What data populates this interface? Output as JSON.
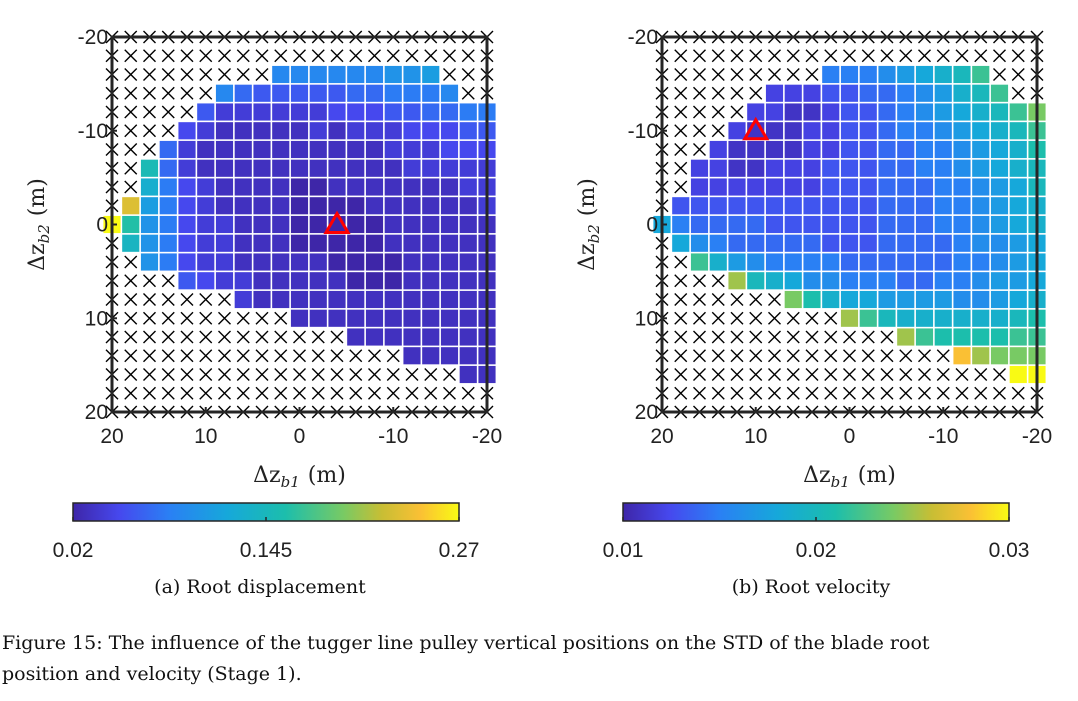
{
  "colormap": "parula",
  "marker_color": "#ff0000",
  "empty_cell_marker": "cross",
  "chart_data": [
    {
      "type": "heatmap",
      "caption": "(a) Root displacement",
      "xlabel": {
        "symbol": "Δz",
        "sub": "b1",
        "unit": "(m)"
      },
      "ylabel": {
        "symbol": "Δz",
        "sub": "b2",
        "unit": "(m)"
      },
      "x": [
        20,
        18,
        16,
        14,
        12,
        10,
        8,
        6,
        4,
        2,
        0,
        -2,
        -4,
        -6,
        -8,
        -10,
        -12,
        -14,
        -16,
        -18,
        -20
      ],
      "y": [
        -20,
        -18,
        -16,
        -14,
        -12,
        -10,
        -8,
        -6,
        -4,
        -2,
        0,
        2,
        4,
        6,
        8,
        10,
        12,
        14,
        16,
        18,
        20
      ],
      "xlim": [
        20,
        -20
      ],
      "ylim": [
        -20,
        20
      ],
      "xticks": [
        "20",
        "10",
        "0",
        "-10",
        "-20"
      ],
      "yticks": [
        "-20",
        "-10",
        "0",
        "10",
        "20"
      ],
      "colorbar": {
        "min": 0.02,
        "max": 0.27,
        "ticks": [
          "0.02",
          "0.145",
          "0.27"
        ]
      },
      "marker": {
        "shape": "triangle",
        "x": -4,
        "y": 0
      },
      "rows": [
        {
          "start": 0,
          "values": []
        },
        {
          "start": 0,
          "values": []
        },
        {
          "start": 9,
          "values": [
            0.09,
            0.09,
            0.09,
            0.09,
            0.09,
            0.09,
            0.1,
            0.1,
            0.11
          ]
        },
        {
          "start": 6,
          "values": [
            0.09,
            0.07,
            0.06,
            0.06,
            0.06,
            0.06,
            0.06,
            0.07,
            0.07,
            0.08,
            0.08,
            0.08,
            0.09
          ]
        },
        {
          "start": 5,
          "values": [
            0.06,
            0.04,
            0.04,
            0.04,
            0.04,
            0.04,
            0.04,
            0.05,
            0.05,
            0.05,
            0.06,
            0.06,
            0.07,
            0.07,
            0.08,
            0.08
          ]
        },
        {
          "start": 4,
          "values": [
            0.05,
            0.04,
            0.03,
            0.03,
            0.03,
            0.03,
            0.03,
            0.04,
            0.03,
            0.04,
            0.04,
            0.04,
            0.05,
            0.05,
            0.05,
            0.06,
            0.06
          ]
        },
        {
          "start": 3,
          "values": [
            0.07,
            0.04,
            0.03,
            0.03,
            0.03,
            0.03,
            0.03,
            0.03,
            0.03,
            0.03,
            0.03,
            0.03,
            0.04,
            0.04,
            0.04,
            0.05,
            0.05,
            0.05
          ]
        },
        {
          "start": 2,
          "values": [
            0.15,
            0.07,
            0.04,
            0.03,
            0.03,
            0.03,
            0.03,
            0.03,
            0.03,
            0.03,
            0.03,
            0.03,
            0.03,
            0.03,
            0.04,
            0.04,
            0.04,
            0.04,
            0.04
          ]
        },
        {
          "start": 2,
          "values": [
            0.13,
            0.08,
            0.05,
            0.04,
            0.03,
            0.03,
            0.03,
            0.03,
            0.02,
            0.02,
            0.03,
            0.03,
            0.03,
            0.03,
            0.03,
            0.03,
            0.03,
            0.04,
            0.04
          ]
        },
        {
          "start": 1,
          "values": [
            0.23,
            0.11,
            0.08,
            0.05,
            0.04,
            0.03,
            0.03,
            0.03,
            0.03,
            0.02,
            0.02,
            0.02,
            0.02,
            0.03,
            0.03,
            0.03,
            0.03,
            0.03,
            0.03,
            0.04
          ]
        },
        {
          "start": 0,
          "values": [
            0.27,
            0.16,
            0.1,
            0.08,
            0.05,
            0.04,
            0.04,
            0.03,
            0.03,
            0.03,
            0.02,
            0.02,
            0.02,
            0.02,
            0.02,
            0.03,
            0.03,
            0.03,
            0.03,
            0.03,
            0.03
          ]
        },
        {
          "start": 1,
          "values": [
            0.14,
            0.1,
            0.08,
            0.05,
            0.04,
            0.04,
            0.03,
            0.03,
            0.03,
            0.02,
            0.02,
            0.02,
            0.02,
            0.02,
            0.03,
            0.03,
            0.03,
            0.03,
            0.03,
            0.03
          ]
        },
        {
          "start": 2,
          "values": [
            0.1,
            0.08,
            0.05,
            0.04,
            0.04,
            0.03,
            0.03,
            0.03,
            0.03,
            0.03,
            0.02,
            0.02,
            0.02,
            0.02,
            0.03,
            0.03,
            0.03,
            0.03,
            0.03
          ]
        },
        {
          "start": 4,
          "values": [
            0.06,
            0.05,
            0.04,
            0.04,
            0.03,
            0.03,
            0.03,
            0.03,
            0.03,
            0.02,
            0.02,
            0.02,
            0.03,
            0.03,
            0.03,
            0.03,
            0.03
          ]
        },
        {
          "start": 7,
          "values": [
            0.04,
            0.03,
            0.03,
            0.03,
            0.03,
            0.03,
            0.03,
            0.03,
            0.03,
            0.03,
            0.03,
            0.03,
            0.03,
            0.03
          ]
        },
        {
          "start": 10,
          "values": [
            0.03,
            0.03,
            0.03,
            0.03,
            0.03,
            0.03,
            0.03,
            0.03,
            0.03,
            0.03,
            0.03
          ]
        },
        {
          "start": 13,
          "values": [
            0.03,
            0.03,
            0.03,
            0.03,
            0.03,
            0.03,
            0.03,
            0.03
          ]
        },
        {
          "start": 16,
          "values": [
            0.03,
            0.03,
            0.03,
            0.03,
            0.03
          ]
        },
        {
          "start": 19,
          "values": [
            0.03,
            0.03
          ]
        },
        {
          "start": 0,
          "values": []
        },
        {
          "start": 0,
          "values": []
        }
      ]
    },
    {
      "type": "heatmap",
      "caption": "(b) Root velocity",
      "xlabel": {
        "symbol": "Δz",
        "sub": "b1",
        "unit": "(m)"
      },
      "ylabel": {
        "symbol": "Δz",
        "sub": "b2",
        "unit": "(m)"
      },
      "x": [
        20,
        18,
        16,
        14,
        12,
        10,
        8,
        6,
        4,
        2,
        0,
        -2,
        -4,
        -6,
        -8,
        -10,
        -12,
        -14,
        -16,
        -18,
        -20
      ],
      "y": [
        -20,
        -18,
        -16,
        -14,
        -12,
        -10,
        -8,
        -6,
        -4,
        -2,
        0,
        2,
        4,
        6,
        8,
        10,
        12,
        14,
        16,
        18,
        20
      ],
      "xlim": [
        20,
        -20
      ],
      "ylim": [
        -20,
        20
      ],
      "xticks": [
        "20",
        "10",
        "0",
        "-10",
        "-20"
      ],
      "yticks": [
        "-20",
        "-10",
        "0",
        "10",
        "20"
      ],
      "colorbar": {
        "min": 0.01,
        "max": 0.03,
        "ticks": [
          "0.01",
          "0.02",
          "0.03"
        ]
      },
      "marker": {
        "shape": "triangle",
        "x": 10,
        "y": -10
      },
      "rows": [
        {
          "start": 0,
          "values": []
        },
        {
          "start": 0,
          "values": []
        },
        {
          "start": 9,
          "values": [
            0.015,
            0.015,
            0.015,
            0.016,
            0.017,
            0.018,
            0.019,
            0.02,
            0.022
          ]
        },
        {
          "start": 6,
          "values": [
            0.012,
            0.012,
            0.012,
            0.013,
            0.013,
            0.014,
            0.014,
            0.015,
            0.016,
            0.017,
            0.019,
            0.02,
            0.022
          ]
        },
        {
          "start": 5,
          "values": [
            0.012,
            0.012,
            0.011,
            0.011,
            0.012,
            0.013,
            0.013,
            0.014,
            0.015,
            0.016,
            0.017,
            0.018,
            0.019,
            0.02,
            0.022,
            0.024
          ]
        },
        {
          "start": 4,
          "values": [
            0.012,
            0.011,
            0.011,
            0.011,
            0.012,
            0.012,
            0.013,
            0.013,
            0.014,
            0.015,
            0.015,
            0.016,
            0.017,
            0.018,
            0.019,
            0.02,
            0.022
          ]
        },
        {
          "start": 3,
          "values": [
            0.012,
            0.011,
            0.011,
            0.011,
            0.011,
            0.012,
            0.012,
            0.013,
            0.013,
            0.014,
            0.014,
            0.015,
            0.015,
            0.016,
            0.017,
            0.018,
            0.019,
            0.021
          ]
        },
        {
          "start": 2,
          "values": [
            0.012,
            0.012,
            0.011,
            0.011,
            0.012,
            0.012,
            0.012,
            0.013,
            0.013,
            0.013,
            0.014,
            0.014,
            0.015,
            0.015,
            0.016,
            0.017,
            0.018,
            0.019,
            0.02
          ]
        },
        {
          "start": 2,
          "values": [
            0.012,
            0.012,
            0.012,
            0.012,
            0.012,
            0.012,
            0.012,
            0.013,
            0.013,
            0.013,
            0.014,
            0.014,
            0.014,
            0.015,
            0.015,
            0.016,
            0.017,
            0.018,
            0.02
          ]
        },
        {
          "start": 1,
          "values": [
            0.013,
            0.013,
            0.013,
            0.013,
            0.013,
            0.013,
            0.013,
            0.013,
            0.013,
            0.013,
            0.013,
            0.014,
            0.014,
            0.014,
            0.015,
            0.015,
            0.016,
            0.017,
            0.018,
            0.019
          ]
        },
        {
          "start": 0,
          "values": [
            0.018,
            0.015,
            0.014,
            0.014,
            0.014,
            0.014,
            0.013,
            0.013,
            0.013,
            0.013,
            0.013,
            0.013,
            0.014,
            0.014,
            0.014,
            0.015,
            0.015,
            0.016,
            0.017,
            0.018,
            0.019
          ]
        },
        {
          "start": 1,
          "values": [
            0.018,
            0.016,
            0.015,
            0.014,
            0.014,
            0.014,
            0.014,
            0.014,
            0.013,
            0.013,
            0.013,
            0.014,
            0.014,
            0.014,
            0.014,
            0.015,
            0.016,
            0.016,
            0.017,
            0.018
          ]
        },
        {
          "start": 2,
          "values": [
            0.022,
            0.019,
            0.017,
            0.016,
            0.015,
            0.015,
            0.015,
            0.015,
            0.014,
            0.014,
            0.014,
            0.014,
            0.014,
            0.014,
            0.015,
            0.015,
            0.016,
            0.017,
            0.018
          ]
        },
        {
          "start": 4,
          "values": [
            0.025,
            0.02,
            0.019,
            0.018,
            0.016,
            0.016,
            0.015,
            0.015,
            0.015,
            0.014,
            0.014,
            0.015,
            0.015,
            0.016,
            0.017,
            0.017,
            0.018
          ]
        },
        {
          "start": 7,
          "values": [
            0.024,
            0.021,
            0.019,
            0.018,
            0.018,
            0.017,
            0.017,
            0.017,
            0.017,
            0.016,
            0.016,
            0.017,
            0.018,
            0.019
          ]
        },
        {
          "start": 10,
          "values": [
            0.025,
            0.022,
            0.02,
            0.019,
            0.019,
            0.019,
            0.019,
            0.019,
            0.019,
            0.02,
            0.021
          ]
        },
        {
          "start": 13,
          "values": [
            0.025,
            0.022,
            0.021,
            0.021,
            0.021,
            0.021,
            0.022,
            0.022
          ]
        },
        {
          "start": 16,
          "values": [
            0.028,
            0.025,
            0.024,
            0.024,
            0.024
          ]
        },
        {
          "start": 19,
          "values": [
            0.03,
            0.03
          ]
        },
        {
          "start": 0,
          "values": []
        },
        {
          "start": 0,
          "values": []
        }
      ]
    }
  ],
  "figure_caption": [
    "Figure 15: The influence of the tugger line pulley vertical positions on the STD of the blade root",
    "position and velocity (Stage 1)."
  ]
}
